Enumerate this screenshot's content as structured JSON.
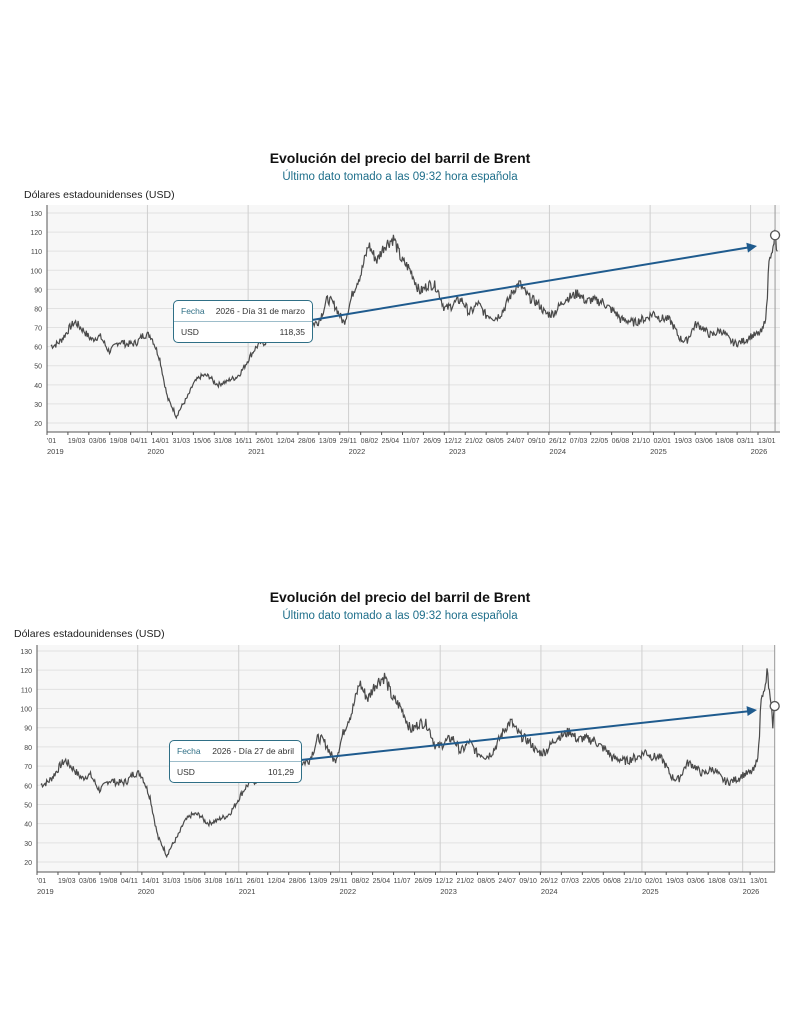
{
  "chart_data": [
    {
      "type": "line",
      "title": "Evolución del precio del barril de Brent",
      "subtitle": "Último dato tomado a las 09:32 hora española",
      "ylabel": "Dólares estadounidenses (USD)",
      "xlabel": "",
      "ylim": [
        15,
        132
      ],
      "yticks": [
        20,
        30,
        40,
        50,
        60,
        70,
        80,
        90,
        100,
        110,
        120,
        130
      ],
      "xlim": [
        "2019-01-01",
        "2026-04-10"
      ],
      "grid": true,
      "xtick_labels": [
        "'01",
        "19/03",
        "03/06",
        "19/08",
        "04/11",
        "14/01",
        "31/03",
        "15/06",
        "31/08",
        "16/11",
        "26/01",
        "12/04",
        "28/06",
        "13/09",
        "29/11",
        "08/02",
        "25/04",
        "11/07",
        "26/09",
        "12/12",
        "21/02",
        "08/05",
        "24/07",
        "09/10",
        "26/12",
        "07/03",
        "22/05",
        "06/08",
        "21/10",
        "02/01",
        "19/03",
        "03/06",
        "18/08",
        "03/11",
        "13/01"
      ],
      "year_labels": [
        "2019",
        "2020",
        "2021",
        "2022",
        "2023",
        "2024",
        "2025",
        "2026"
      ],
      "series": [
        {
          "x": [
            "2019-01",
            "2019-02",
            "2019-03",
            "2019-04",
            "2019-05",
            "2019-06",
            "2019-07",
            "2019-08",
            "2019-09",
            "2019-10",
            "2019-11",
            "2019-12",
            "2020-01",
            "2020-02",
            "2020-03",
            "2020-04",
            "2020-05",
            "2020-06",
            "2020-07",
            "2020-08",
            "2020-09",
            "2020-10",
            "2020-11",
            "2020-12",
            "2021-01",
            "2021-02",
            "2021-03",
            "2021-04",
            "2021-05",
            "2021-06",
            "2021-07",
            "2021-08",
            "2021-09",
            "2021-10",
            "2021-11",
            "2021-12",
            "2022-01",
            "2022-02",
            "2022-03",
            "2022-04",
            "2022-05",
            "2022-06",
            "2022-07",
            "2022-08",
            "2022-09",
            "2022-10",
            "2022-11",
            "2022-12",
            "2023-01",
            "2023-02",
            "2023-03",
            "2023-04",
            "2023-05",
            "2023-06",
            "2023-07",
            "2023-08",
            "2023-09",
            "2023-10",
            "2023-11",
            "2023-12",
            "2024-01",
            "2024-02",
            "2024-03",
            "2024-04",
            "2024-05",
            "2024-06",
            "2024-07",
            "2024-08",
            "2024-09",
            "2024-10",
            "2024-11",
            "2024-12",
            "2025-01",
            "2025-02",
            "2025-03",
            "2025-04",
            "2025-05",
            "2025-06",
            "2025-07",
            "2025-08",
            "2025-09",
            "2025-10",
            "2025-11",
            "2025-12",
            "2026-01",
            "2026-02",
            "2026-03-01",
            "2026-03-10",
            "2026-03-20",
            "2026-03-31",
            "2026-04-10"
          ],
          "values": [
            60,
            64,
            67,
            72,
            70,
            63,
            64,
            59,
            62,
            60,
            63,
            66,
            64,
            55,
            33,
            22,
            32,
            41,
            43,
            45,
            41,
            40,
            44,
            50,
            55,
            62,
            65,
            65,
            68,
            73,
            75,
            71,
            75,
            84,
            80,
            74,
            87,
            97,
            115,
            105,
            112,
            118,
            105,
            98,
            90,
            93,
            90,
            81,
            83,
            83,
            78,
            84,
            75,
            75,
            80,
            86,
            93,
            88,
            82,
            77,
            79,
            82,
            85,
            90,
            83,
            83,
            85,
            79,
            73,
            75,
            73,
            73,
            79,
            75,
            72,
            66,
            64,
            70,
            70,
            67,
            67,
            64,
            63,
            62,
            66,
            70,
            80,
            110,
            105,
            118.35,
            104
          ]
        }
      ],
      "tooltip": {
        "label_date": "Fecha",
        "date": "2026 - Día 31 de marzo",
        "label_value": "USD",
        "value": "118,35"
      },
      "highlight": {
        "x": "2026-03-31",
        "y": 118.35
      },
      "arrow_color": "#1f5b8e",
      "line_color": "#4a4a4a"
    },
    {
      "type": "line",
      "title": "Evolución del precio del barril de Brent",
      "subtitle": "Último dato tomado a las 09:32 hora española",
      "ylabel": "Dólares estadounidenses (USD)",
      "xlabel": "",
      "ylim": [
        15,
        132
      ],
      "yticks": [
        20,
        30,
        40,
        50,
        60,
        70,
        80,
        90,
        100,
        110,
        120,
        130
      ],
      "xlim": [
        "2019-01-01",
        "2026-04-30"
      ],
      "grid": true,
      "xtick_labels": [
        "'01",
        "19/03",
        "03/06",
        "19/08",
        "04/11",
        "14/01",
        "31/03",
        "15/06",
        "31/08",
        "16/11",
        "26/01",
        "12/04",
        "28/06",
        "13/09",
        "29/11",
        "08/02",
        "25/04",
        "11/07",
        "26/09",
        "12/12",
        "21/02",
        "08/05",
        "24/07",
        "09/10",
        "26/12",
        "07/03",
        "22/05",
        "06/08",
        "21/10",
        "02/01",
        "19/03",
        "03/06",
        "18/08",
        "03/11",
        "13/01"
      ],
      "year_labels": [
        "2019",
        "2020",
        "2021",
        "2022",
        "2023",
        "2024",
        "2025",
        "2026"
      ],
      "series": [
        {
          "x": [
            "2019-01",
            "2019-02",
            "2019-03",
            "2019-04",
            "2019-05",
            "2019-06",
            "2019-07",
            "2019-08",
            "2019-09",
            "2019-10",
            "2019-11",
            "2019-12",
            "2020-01",
            "2020-02",
            "2020-03",
            "2020-04",
            "2020-05",
            "2020-06",
            "2020-07",
            "2020-08",
            "2020-09",
            "2020-10",
            "2020-11",
            "2020-12",
            "2021-01",
            "2021-02",
            "2021-03",
            "2021-04",
            "2021-05",
            "2021-06",
            "2021-07",
            "2021-08",
            "2021-09",
            "2021-10",
            "2021-11",
            "2021-12",
            "2022-01",
            "2022-02",
            "2022-03",
            "2022-04",
            "2022-05",
            "2022-06",
            "2022-07",
            "2022-08",
            "2022-09",
            "2022-10",
            "2022-11",
            "2022-12",
            "2023-01",
            "2023-02",
            "2023-03",
            "2023-04",
            "2023-05",
            "2023-06",
            "2023-07",
            "2023-08",
            "2023-09",
            "2023-10",
            "2023-11",
            "2023-12",
            "2024-01",
            "2024-02",
            "2024-03",
            "2024-04",
            "2024-05",
            "2024-06",
            "2024-07",
            "2024-08",
            "2024-09",
            "2024-10",
            "2024-11",
            "2024-12",
            "2025-01",
            "2025-02",
            "2025-03",
            "2025-04",
            "2025-05",
            "2025-06",
            "2025-07",
            "2025-08",
            "2025-09",
            "2025-10",
            "2025-11",
            "2025-12",
            "2026-01",
            "2026-02",
            "2026-03-01",
            "2026-03-10",
            "2026-03-20",
            "2026-03-31",
            "2026-04-10",
            "2026-04-20",
            "2026-04-27",
            "2026-04-30"
          ],
          "values": [
            60,
            64,
            67,
            72,
            70,
            63,
            64,
            59,
            62,
            60,
            63,
            66,
            64,
            55,
            33,
            22,
            32,
            41,
            43,
            45,
            41,
            40,
            44,
            50,
            55,
            62,
            65,
            65,
            68,
            73,
            75,
            71,
            75,
            84,
            80,
            74,
            87,
            97,
            115,
            105,
            112,
            118,
            105,
            98,
            90,
            93,
            90,
            81,
            83,
            83,
            78,
            84,
            75,
            75,
            80,
            86,
            93,
            88,
            82,
            77,
            79,
            82,
            85,
            90,
            83,
            83,
            85,
            79,
            73,
            75,
            73,
            73,
            79,
            75,
            72,
            66,
            64,
            70,
            70,
            67,
            67,
            64,
            63,
            62,
            66,
            70,
            80,
            110,
            105,
            118,
            104,
            92,
            101.29,
            102
          ]
        }
      ],
      "tooltip": {
        "label_date": "Fecha",
        "date": "2026 - Día 27 de abril",
        "label_value": "USD",
        "value": "101,29"
      },
      "highlight": {
        "x": "2026-04-27",
        "y": 101.29
      },
      "arrow_color": "#1f5b8e",
      "line_color": "#4a4a4a"
    }
  ]
}
